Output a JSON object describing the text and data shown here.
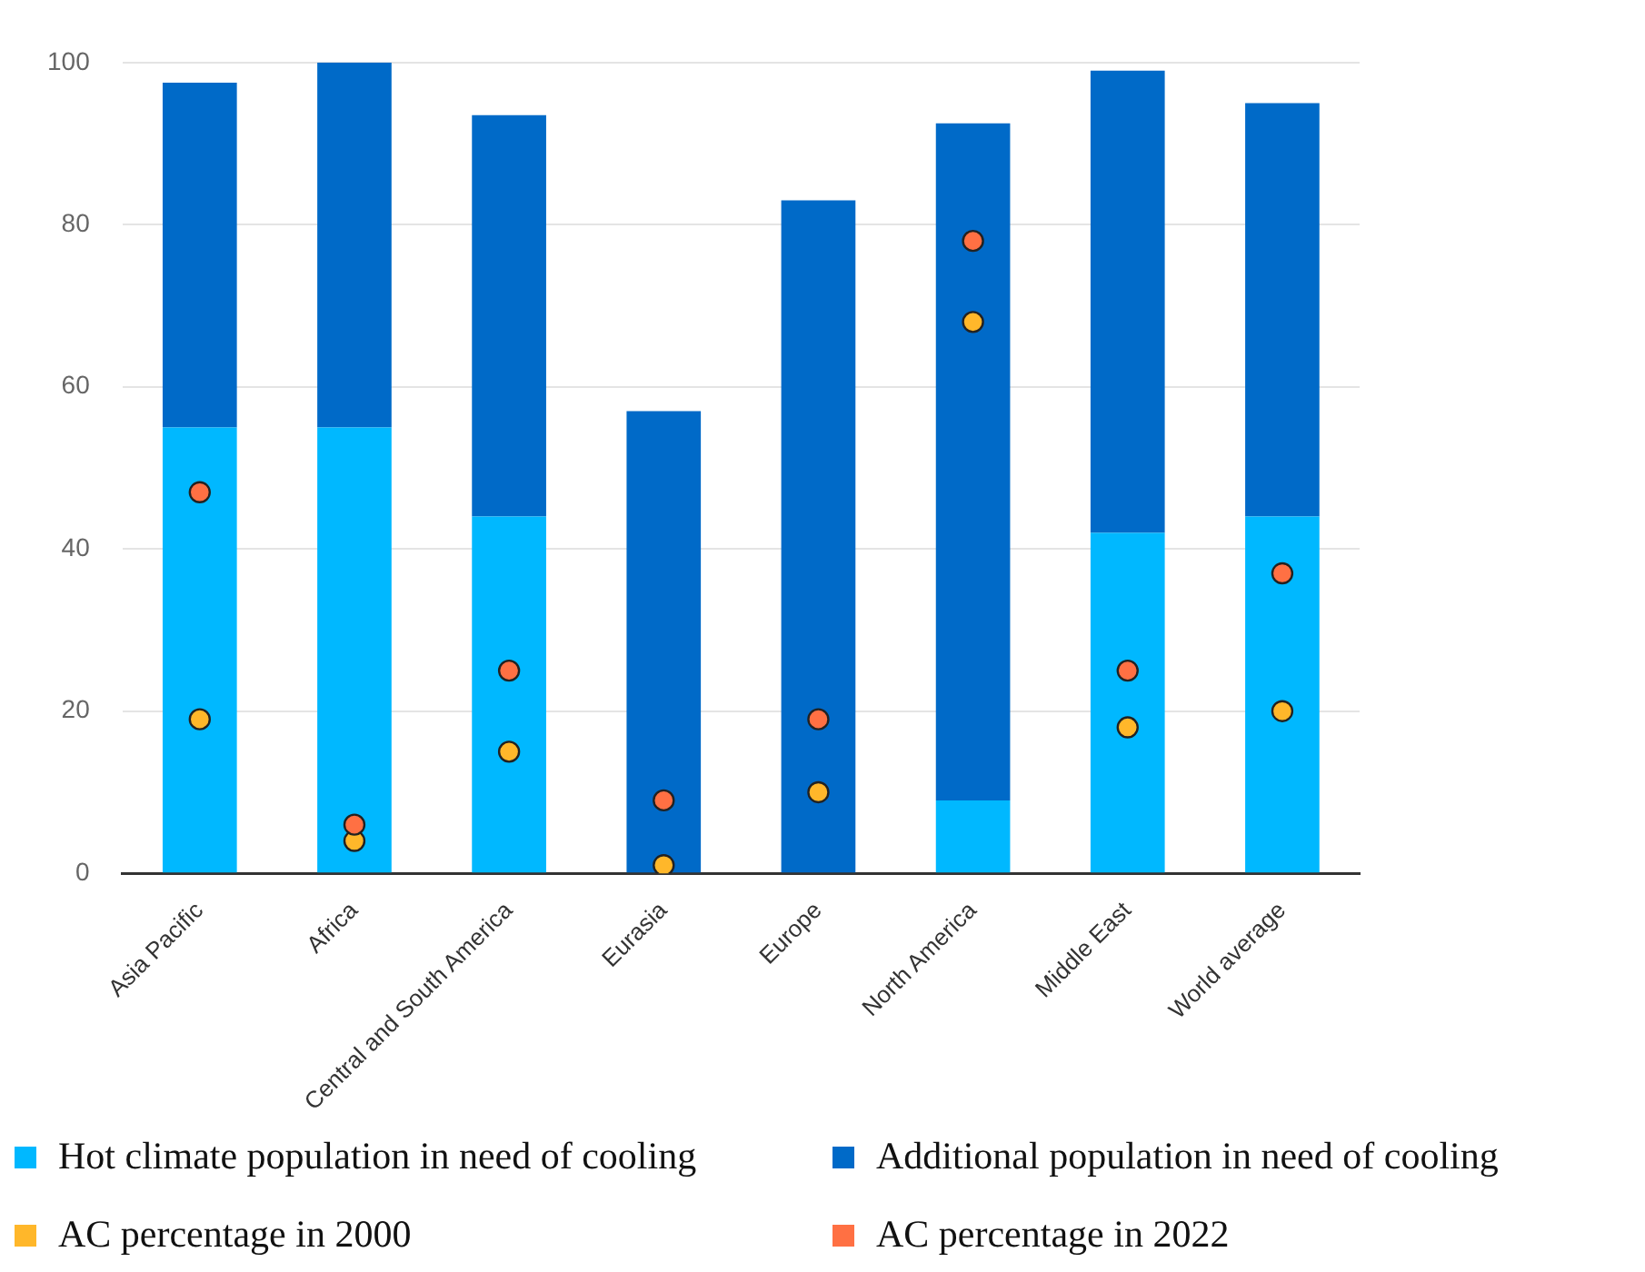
{
  "chart_data": {
    "type": "bar",
    "stacked": true,
    "categories": [
      "Asia Pacific",
      "Africa",
      "Central and South America",
      "Eurasia",
      "Europe",
      "North America",
      "Middle East",
      "World average"
    ],
    "series": [
      {
        "name": "Hot climate population in need of cooling",
        "color": "#00b8ff",
        "values": [
          55,
          55,
          44,
          0,
          0,
          9,
          42,
          44
        ]
      },
      {
        "name": "Additional population in need of cooling",
        "color": "#006ac8",
        "values": [
          42.5,
          45,
          49.5,
          57,
          83,
          83.5,
          57,
          51
        ]
      },
      {
        "name": "AC percentage in 2000",
        "type": "scatter",
        "color": "#ffb72a",
        "marker": "circle",
        "values": [
          19,
          4,
          15,
          1,
          10,
          68,
          18,
          20
        ]
      },
      {
        "name": "AC percentage in 2022",
        "type": "scatter",
        "color": "#ff7043",
        "marker": "circle",
        "values": [
          47,
          6,
          25,
          9,
          19,
          78,
          25,
          37
        ]
      }
    ],
    "ylim": [
      0,
      100
    ],
    "yticks": [
      0,
      20,
      40,
      60,
      80,
      100
    ],
    "grid": "y",
    "legend": "bottom"
  }
}
